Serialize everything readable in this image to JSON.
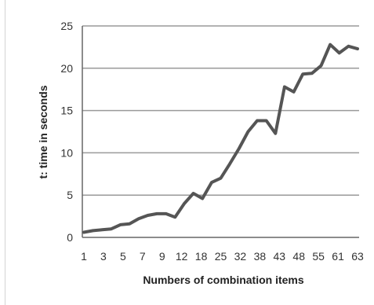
{
  "chart_data": {
    "type": "line",
    "title": "",
    "xlabel": "Numbers of combination items",
    "ylabel": "t: time in seconds",
    "ylim": [
      0,
      25
    ],
    "yticks": [
      0,
      5,
      10,
      15,
      20,
      25
    ],
    "grid": "horizontal",
    "legend": "none",
    "x_tick_labels": [
      "1",
      "3",
      "5",
      "7",
      "9",
      "12",
      "18",
      "25",
      "32",
      "38",
      "43",
      "48",
      "55",
      "61",
      "63"
    ],
    "series": [
      {
        "values": [
          0.6,
          0.8,
          0.9,
          1.0,
          1.5,
          1.6,
          2.2,
          2.6,
          2.8,
          2.8,
          2.4,
          4.0,
          5.2,
          4.6,
          6.5,
          7.0,
          8.7,
          10.5,
          12.5,
          13.8,
          13.8,
          12.3,
          17.8,
          17.2,
          19.3,
          19.4,
          20.3,
          22.8,
          21.8,
          22.6,
          22.3
        ]
      }
    ],
    "colors": {
      "line": "#555555",
      "grid": "#9a9a9a",
      "axis": "#666666",
      "text": "#333333"
    }
  }
}
